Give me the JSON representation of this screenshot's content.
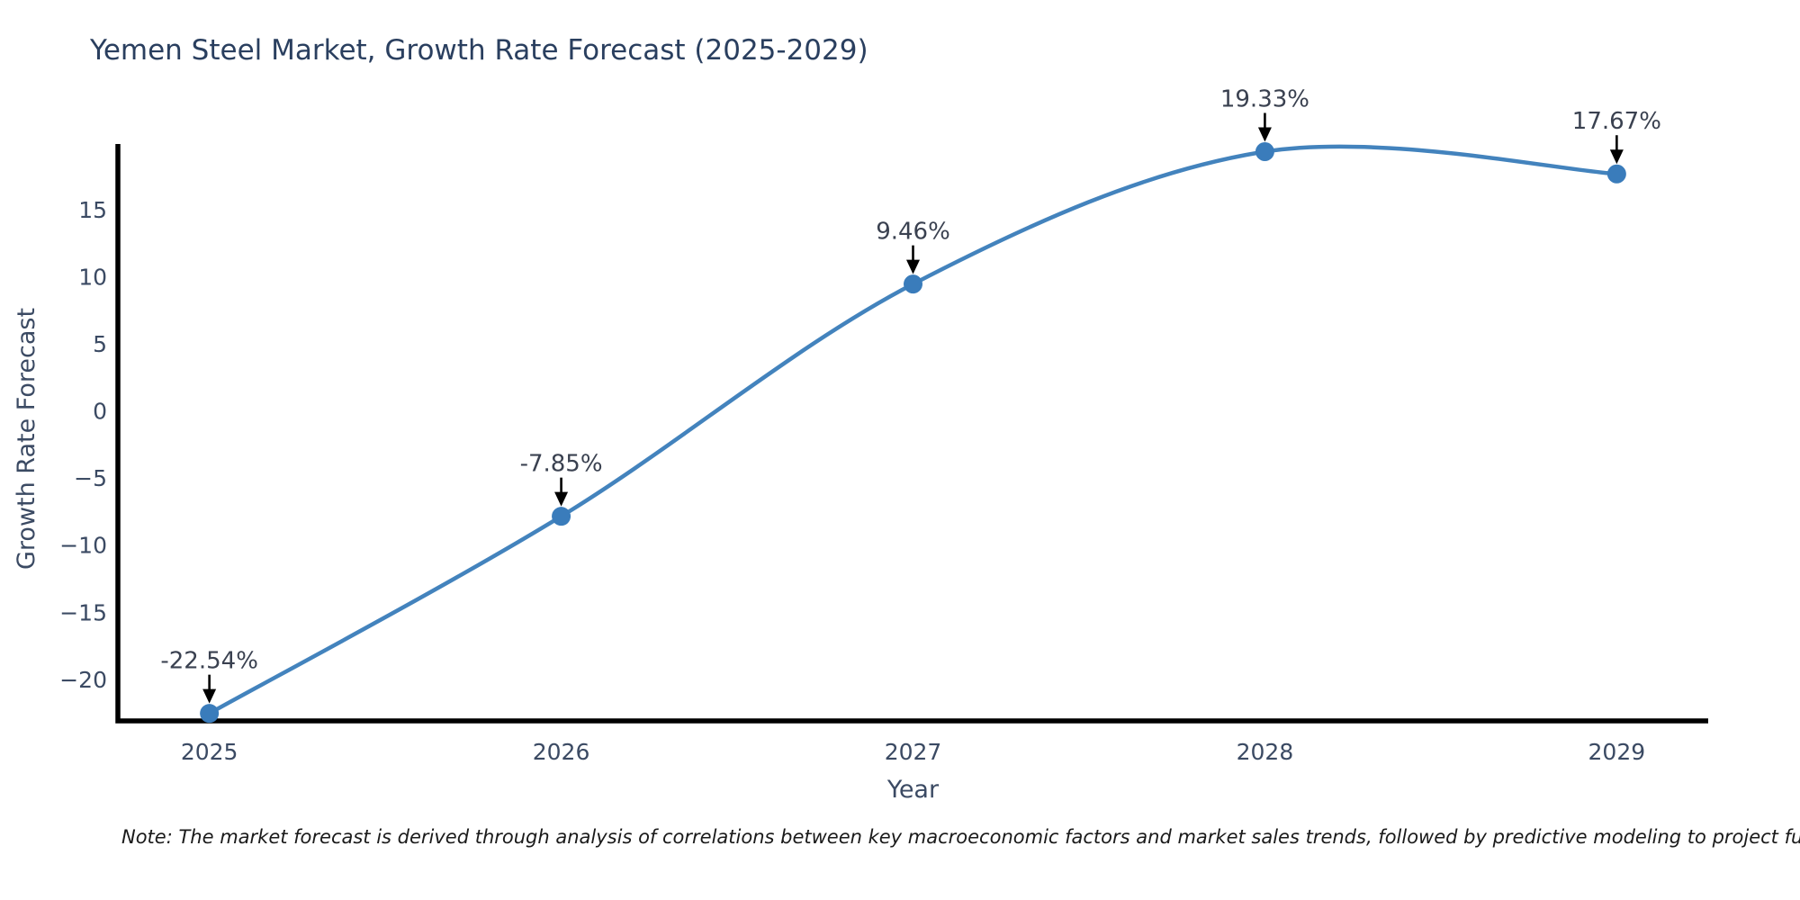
{
  "title": "Yemen Steel Market, Growth Rate Forecast (2025-2029)",
  "note": "Note: The market forecast is derived through analysis of correlations between key macroeconomic factors and market sales trends, followed by predictive modeling to project future sales",
  "colors": {
    "background": "#ffffff",
    "line": "#4383bd",
    "marker": "#3a7cbb",
    "title_text": "#2a3f5f",
    "axis_text": "#3b4a63",
    "axis_line": "#000000",
    "annotation_text": "#3a4150",
    "arrow": "#000000",
    "note_text": "#1a1a1a"
  },
  "chart_data": {
    "type": "line",
    "title": "Yemen Steel Market, Growth Rate Forecast (2025-2029)",
    "xlabel": "Year",
    "ylabel": "Growth Rate Forecast",
    "categories": [
      "2025",
      "2026",
      "2027",
      "2028",
      "2029"
    ],
    "series": [
      {
        "name": "Growth Rate Forecast",
        "values": [
          -22.54,
          -7.85,
          9.46,
          19.33,
          17.67
        ]
      }
    ],
    "point_labels": [
      "-22.54%",
      "-7.85%",
      "9.46%",
      "19.33%",
      "17.67%"
    ],
    "yticks": [
      15,
      10,
      5,
      0,
      -5,
      -10,
      -15,
      -20
    ],
    "ylim": [
      -23.1,
      19.9
    ],
    "xlim_years": [
      2024.74,
      2029.26
    ],
    "grid": false,
    "legend": false,
    "smooth": true,
    "marker_style": "circle",
    "annotation_style": "value label with downward arrow above each point"
  }
}
